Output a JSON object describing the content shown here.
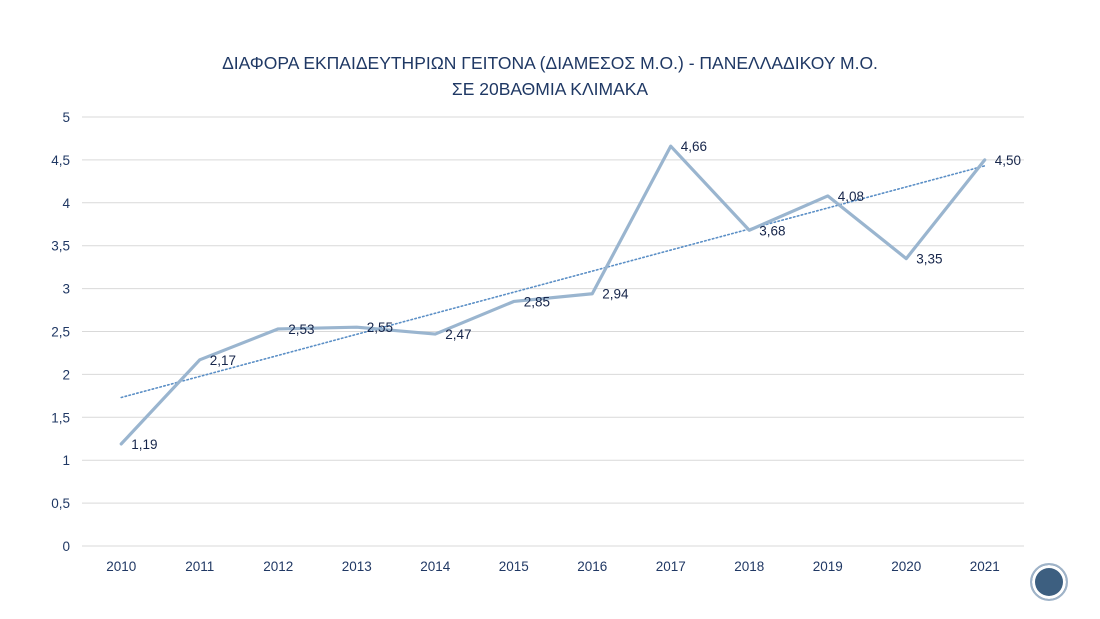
{
  "chart_data": {
    "type": "line",
    "title_line1": "ΔΙΑΦΟΡΑ ΕΚΠΑΙΔΕΥΤΗΡΙΩΝ ΓΕΙΤΟΝΑ (ΔΙΑΜΕΣΟΣ Μ.Ο.) - ΠΑΝΕΛΛΑΔΙΚΟΥ Μ.Ο.",
    "title_line2": "ΣΕ 20ΒΑΘΜΙΑ ΚΛΙΜΑΚΑ",
    "categories": [
      "2010",
      "2011",
      "2012",
      "2013",
      "2014",
      "2015",
      "2016",
      "2017",
      "2018",
      "2019",
      "2020",
      "2021"
    ],
    "values": [
      1.19,
      2.17,
      2.53,
      2.55,
      2.47,
      2.85,
      2.94,
      4.66,
      3.68,
      4.08,
      3.35,
      4.5
    ],
    "value_labels": [
      "1,19",
      "2,17",
      "2,53",
      "2,55",
      "2,47",
      "2,85",
      "2,94",
      "4,66",
      "3,68",
      "4,08",
      "3,35",
      "4,50"
    ],
    "ylim": [
      0,
      5
    ],
    "y_ticks": [
      0,
      0.5,
      1,
      1.5,
      2,
      2.5,
      3,
      3.5,
      4,
      4.5,
      5
    ],
    "y_tick_labels": [
      "0",
      "0,5",
      "1",
      "1,5",
      "2",
      "2,5",
      "3",
      "3,5",
      "4",
      "4,5",
      "5"
    ],
    "grid": true,
    "trendline": {
      "type": "linear",
      "style": "dotted"
    },
    "colors": {
      "series": "#9ab5cf",
      "trend": "#5b8fc6",
      "grid": "#d9d9d9",
      "text": "#203864"
    }
  }
}
